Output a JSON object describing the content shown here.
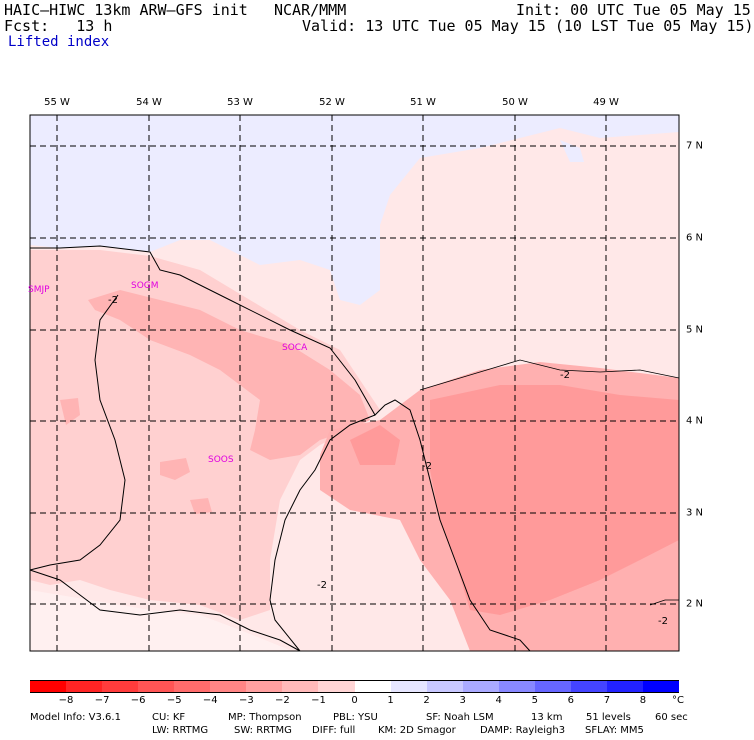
{
  "header": {
    "model": "HAIC–HIWC 13km ARW–GFS init",
    "org": "NCAR/MMM",
    "init": "Init: 00 UTC Tue 05 May 15",
    "fcst": "Fcst:   13 h",
    "valid": "Valid: 13 UTC Tue 05 May 15 (10 LST Tue 05 May 15)",
    "field": "Lifted index"
  },
  "map": {
    "lon_labels": [
      "55 W",
      "54 W",
      "53 W",
      "52 W",
      "51 W",
      "50 W",
      "49 W"
    ],
    "lat_labels": [
      "7 N",
      "6 N",
      "5 N",
      "4 N",
      "3 N",
      "2 N"
    ],
    "stations": [
      "SMJP",
      "SOGM",
      "SOCA",
      "SOOS"
    ],
    "contour_labels": [
      "-2",
      "-2",
      "-2",
      "-2",
      "-2"
    ],
    "colors": {
      "land_outline": "#000000",
      "station": "#e000e0",
      "grid": "#000000"
    }
  },
  "colorbar": {
    "ticks": [
      "−8",
      "−7",
      "−6",
      "−5",
      "−4",
      "−3",
      "−2",
      "−1",
      "0",
      "1",
      "2",
      "3",
      "4",
      "5",
      "6",
      "7",
      "8"
    ],
    "unit": "°C",
    "colors": [
      "#ff0000",
      "#ff2424",
      "#ff3c3c",
      "#ff5555",
      "#ff6c6c",
      "#ff8585",
      "#ffa0a0",
      "#ffbaba",
      "#ffd5d5",
      "#ffffff",
      "#e6e6ff",
      "#c8c8ff",
      "#aaaaff",
      "#8888ff",
      "#6666ff",
      "#4444ff",
      "#2222ff",
      "#0000ff"
    ]
  },
  "footer": {
    "line1": [
      "Model Info: V3.6.1",
      "CU: KF",
      "MP: Thompson",
      "PBL: YSU",
      "SF: Noah LSM",
      "13 km",
      "51 levels",
      "60 sec"
    ],
    "line2": [
      "LW: RRTMG",
      "SW: RRTMG",
      "DIFF: full",
      "KM: 2D Smagor",
      "DAMP: Rayleigh3",
      "SFLAY: MM5"
    ]
  }
}
